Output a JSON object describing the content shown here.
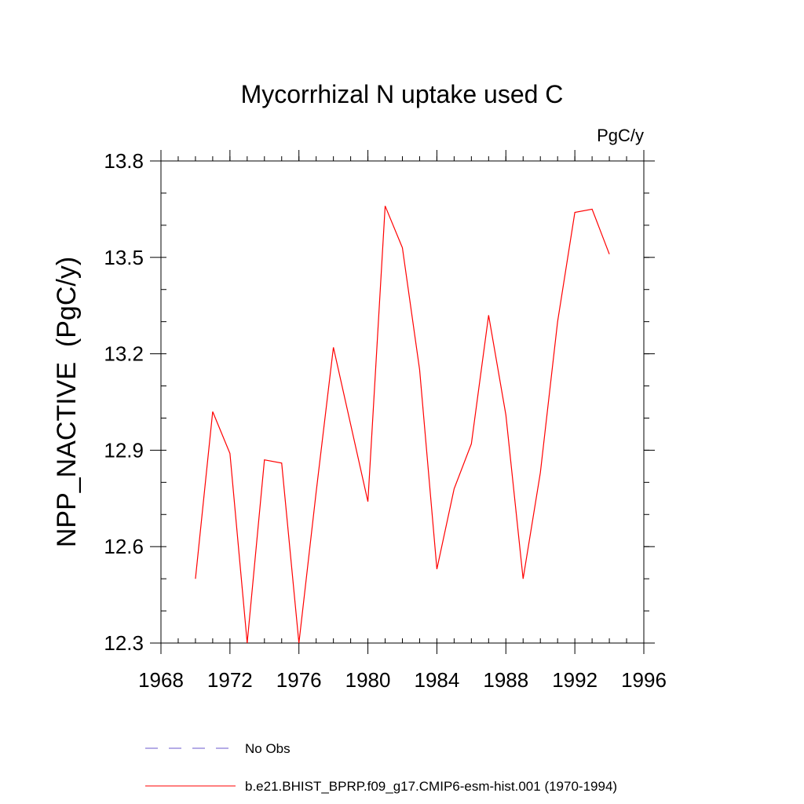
{
  "chart_data": {
    "type": "line",
    "title": "Mycorrhizal N uptake used C",
    "units_label": "PgC/y",
    "ylabel": "NPP_NACTIVE  (PgC/y)",
    "xlabel": "",
    "xlim": [
      1968,
      1996
    ],
    "ylim": [
      12.3,
      13.8
    ],
    "x_ticks": [
      1968,
      1972,
      1976,
      1980,
      1984,
      1988,
      1992,
      1996
    ],
    "y_ticks": [
      "12.3",
      "12.6",
      "12.9",
      "13.2",
      "13.5",
      "13.8"
    ],
    "grid": false,
    "legend_position": "bottom",
    "series": [
      {
        "name": "b.e21.BHIST_BPRP.f09_g17.CMIP6-esm-hist.001 (1970-1994)",
        "color": "#ff0000",
        "x": [
          1970,
          1971,
          1972,
          1973,
          1974,
          1975,
          1976,
          1977,
          1978,
          1979,
          1980,
          1981,
          1982,
          1983,
          1984,
          1985,
          1986,
          1987,
          1988,
          1989,
          1990,
          1991,
          1992,
          1993,
          1994
        ],
        "y": [
          12.5,
          13.02,
          12.89,
          12.3,
          12.87,
          12.86,
          12.3,
          12.77,
          13.22,
          12.98,
          12.74,
          13.66,
          13.53,
          13.15,
          12.53,
          12.78,
          12.92,
          13.32,
          13.01,
          12.5,
          12.83,
          13.3,
          13.64,
          13.65,
          13.51
        ]
      }
    ],
    "legend": [
      {
        "label": "No Obs",
        "color": "#6a5acd",
        "dash": true
      },
      {
        "label": "b.e21.BHIST_BPRP.f09_g17.CMIP6-esm-hist.001 (1970-1994)",
        "color": "#ff0000",
        "dash": false
      }
    ]
  }
}
